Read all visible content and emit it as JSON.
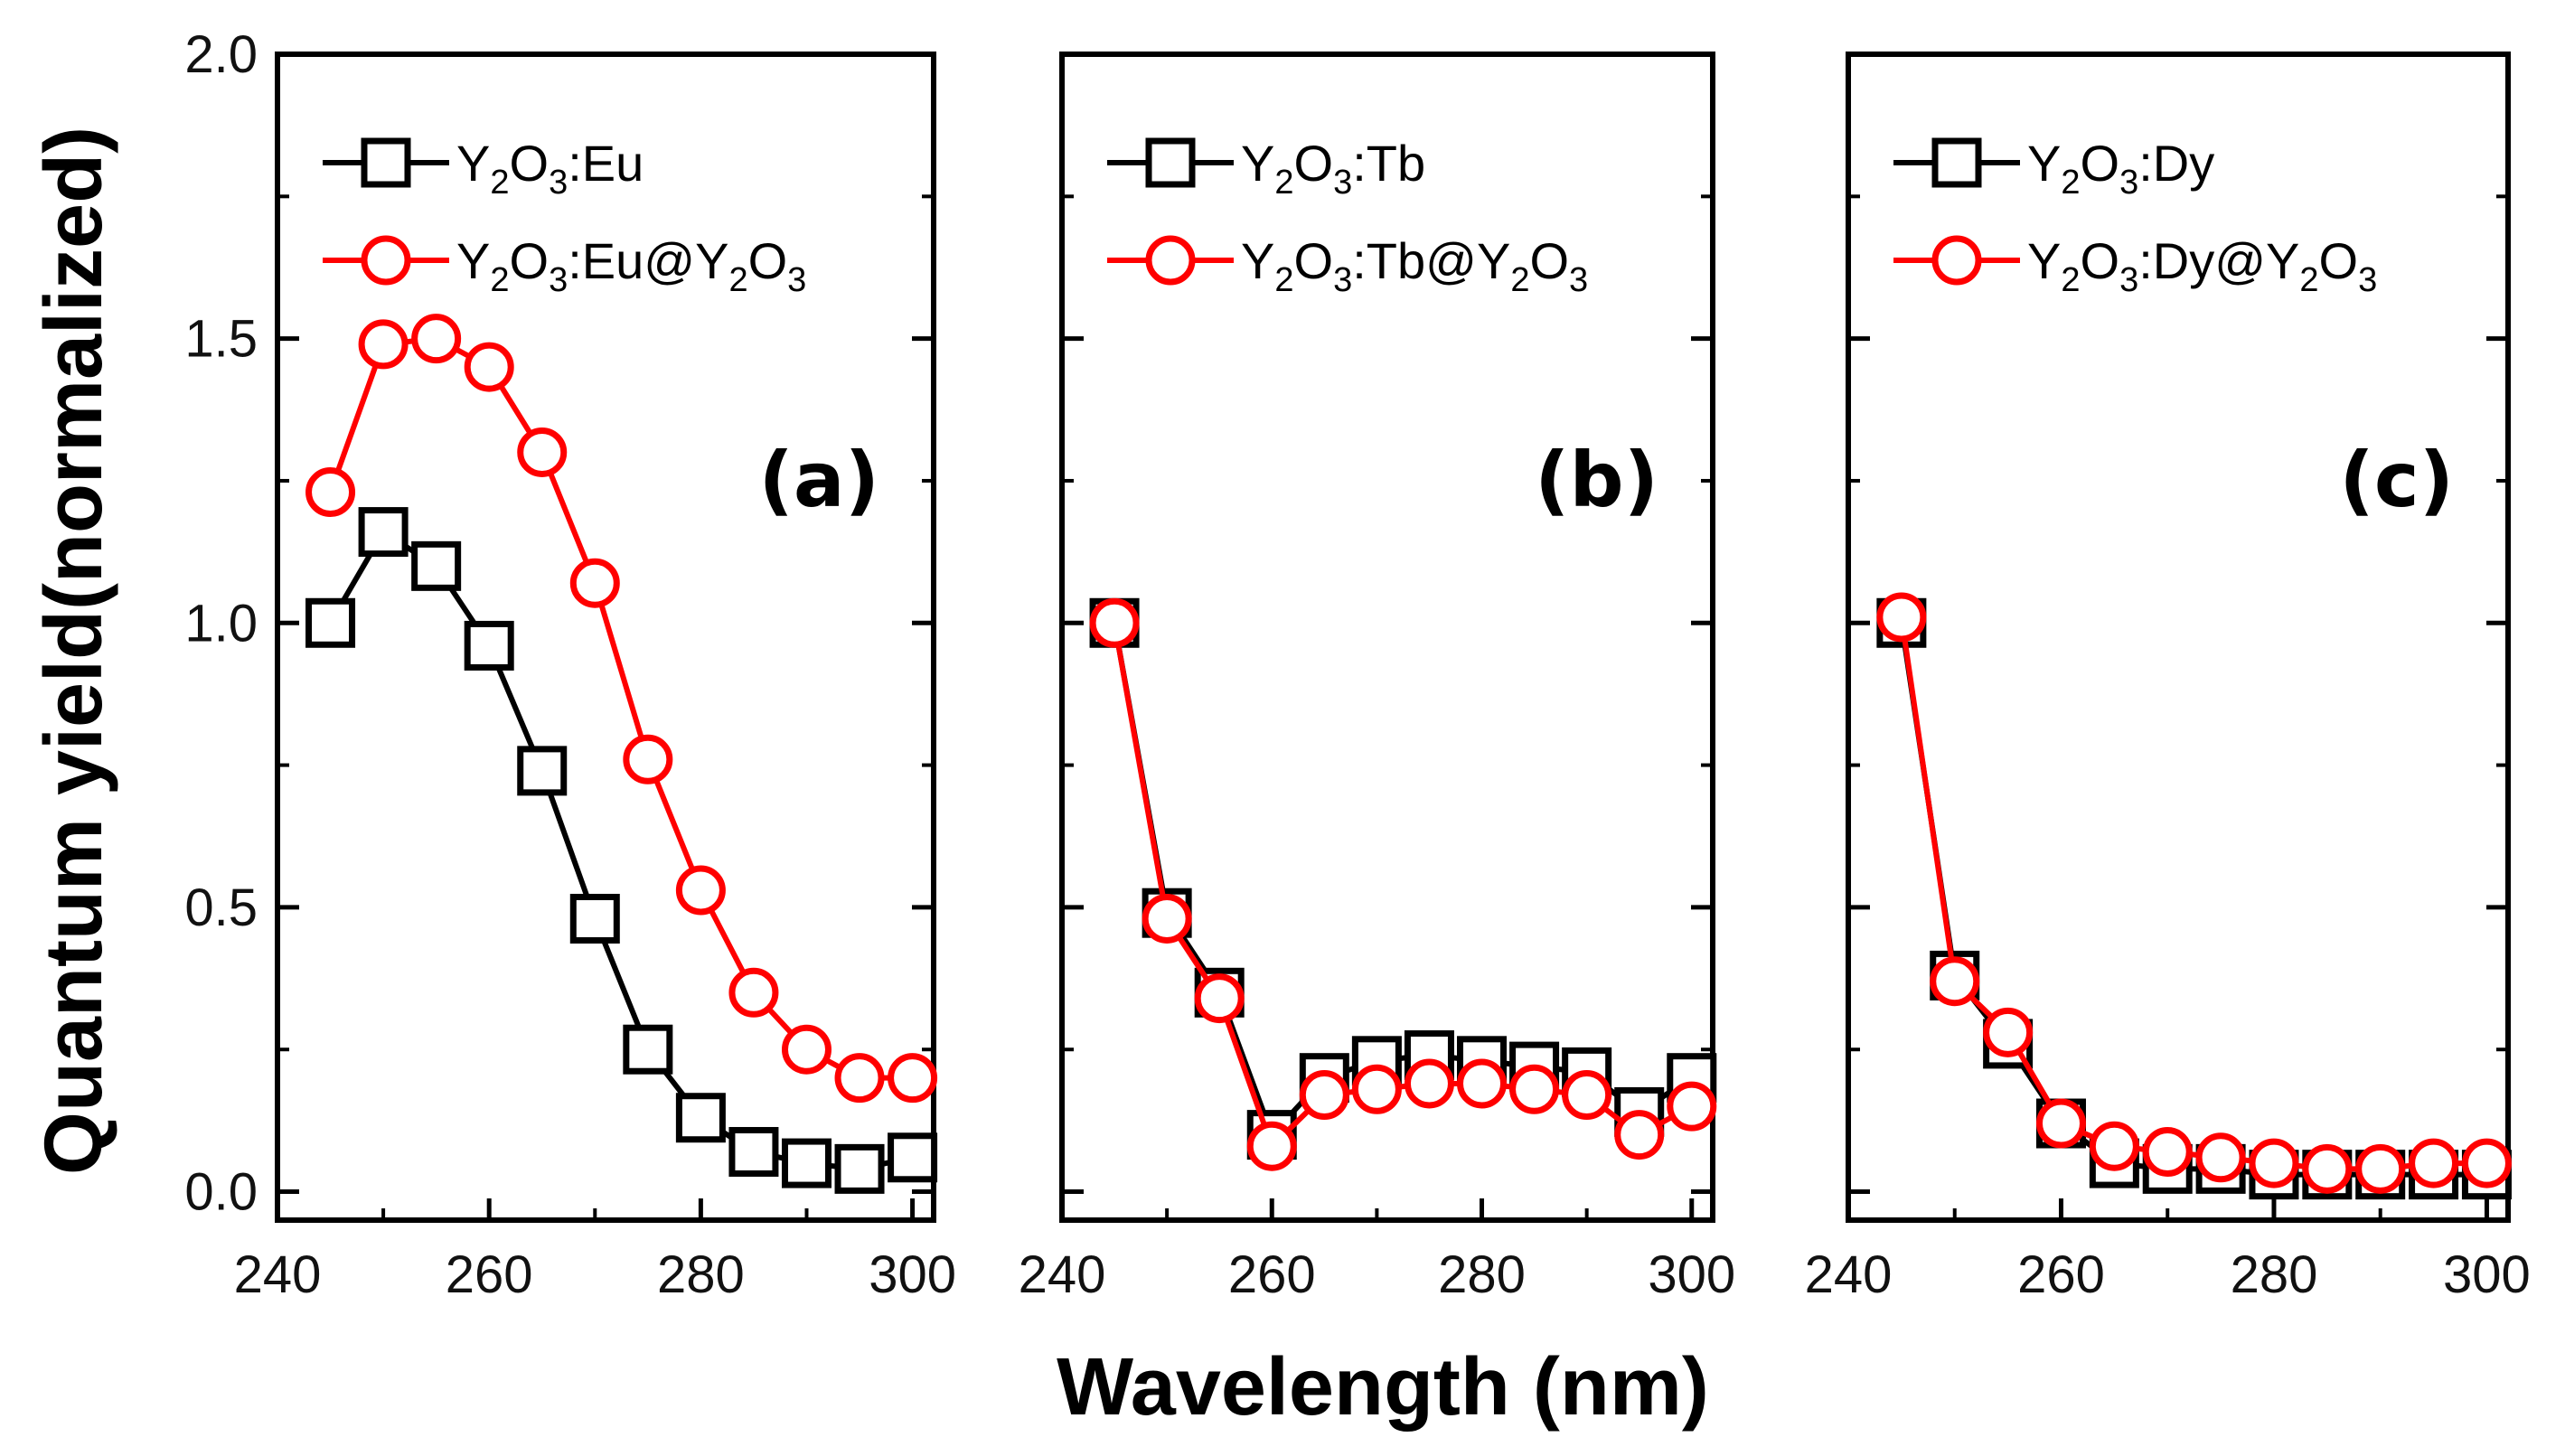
{
  "figure": {
    "ylabel": "Quantum yield(normalized)",
    "xlabel": "Wavelength (nm)"
  },
  "colors": {
    "series1": "#000000",
    "series2": "#ff0000"
  },
  "chart_data": [
    {
      "type": "line",
      "panel_label": "(a)",
      "x": [
        245,
        250,
        255,
        260,
        265,
        270,
        275,
        280,
        285,
        290,
        295,
        300
      ],
      "xlim": [
        240,
        302
      ],
      "ylim": [
        -0.05,
        2.0
      ],
      "xticks": [
        "240",
        "260",
        "280",
        "300"
      ],
      "yticks": [
        "0.0",
        "0.5",
        "1.0",
        "1.5",
        "2.0"
      ],
      "legend_position": "top-left",
      "series": [
        {
          "name": "Y2O3:Eu",
          "legend_parts": [
            "Y",
            "2",
            "O",
            "3",
            ":Eu"
          ],
          "marker": "square",
          "values": [
            1.0,
            1.16,
            1.1,
            0.96,
            0.74,
            0.48,
            0.25,
            0.13,
            0.07,
            0.05,
            0.04,
            0.06
          ]
        },
        {
          "name": "Y2O3:Eu@Y2O3",
          "legend_parts": [
            "Y",
            "2",
            "O",
            "3",
            ":Eu@Y",
            "2",
            "O",
            "3"
          ],
          "marker": "circle",
          "values": [
            1.23,
            1.49,
            1.5,
            1.45,
            1.3,
            1.07,
            0.76,
            0.53,
            0.35,
            0.25,
            0.2,
            0.2
          ]
        }
      ]
    },
    {
      "type": "line",
      "panel_label": "(b)",
      "x": [
        245,
        250,
        255,
        260,
        265,
        270,
        275,
        280,
        285,
        290,
        295,
        300
      ],
      "xlim": [
        240,
        302
      ],
      "ylim": [
        -0.05,
        2.0
      ],
      "xticks": [
        "240",
        "260",
        "280",
        "300"
      ],
      "yticks": [],
      "legend_position": "top-left",
      "series": [
        {
          "name": "Y2O3:Tb",
          "legend_parts": [
            "Y",
            "2",
            "O",
            "3",
            ":Tb"
          ],
          "marker": "square",
          "values": [
            1.0,
            0.49,
            0.35,
            0.1,
            0.2,
            0.23,
            0.24,
            0.23,
            0.22,
            0.21,
            0.14,
            0.2
          ]
        },
        {
          "name": "Y2O3:Tb@Y2O3",
          "legend_parts": [
            "Y",
            "2",
            "O",
            "3",
            ":Tb@Y",
            "2",
            "O",
            "3"
          ],
          "marker": "circle",
          "values": [
            1.0,
            0.48,
            0.34,
            0.08,
            0.17,
            0.18,
            0.19,
            0.19,
            0.18,
            0.17,
            0.1,
            0.15
          ]
        }
      ]
    },
    {
      "type": "line",
      "panel_label": "(c)",
      "x": [
        245,
        250,
        255,
        260,
        265,
        270,
        275,
        280,
        285,
        290,
        295,
        300
      ],
      "xlim": [
        240,
        302
      ],
      "ylim": [
        -0.05,
        2.0
      ],
      "xticks": [
        "240",
        "260",
        "280",
        "300"
      ],
      "yticks": [],
      "legend_position": "top-left",
      "series": [
        {
          "name": "Y2O3:Dy",
          "legend_parts": [
            "Y",
            "2",
            "O",
            "3",
            ":Dy"
          ],
          "marker": "square",
          "values": [
            1.0,
            0.38,
            0.26,
            0.12,
            0.05,
            0.04,
            0.04,
            0.03,
            0.03,
            0.03,
            0.03,
            0.03
          ]
        },
        {
          "name": "Y2O3:Dy@Y2O3",
          "legend_parts": [
            "Y",
            "2",
            "O",
            "3",
            ":Dy@Y",
            "2",
            "O",
            "3"
          ],
          "marker": "circle",
          "values": [
            1.01,
            0.37,
            0.28,
            0.12,
            0.08,
            0.07,
            0.06,
            0.05,
            0.04,
            0.04,
            0.05,
            0.05
          ]
        }
      ]
    }
  ]
}
